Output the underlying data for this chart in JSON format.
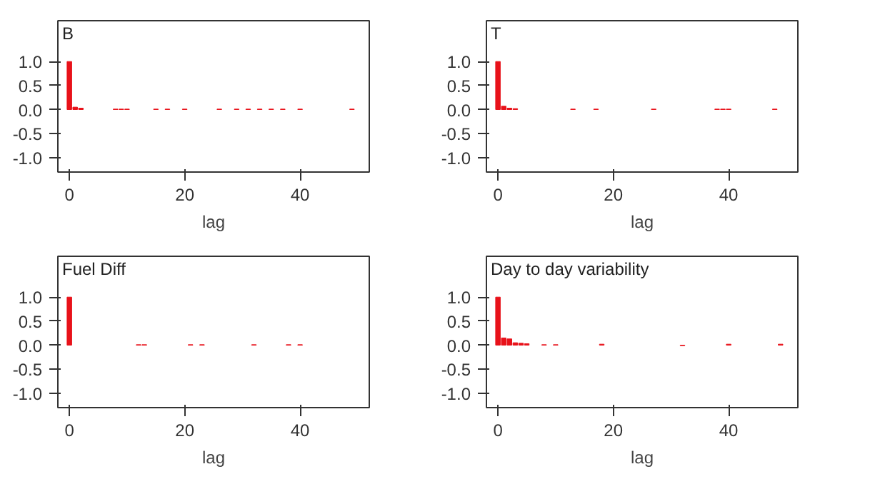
{
  "chart_data": [
    {
      "type": "bar",
      "title": "B",
      "xlabel": "lag",
      "x": [
        0,
        1,
        2,
        8,
        9,
        10,
        15,
        17,
        20,
        26,
        29,
        31,
        33,
        35,
        37,
        40,
        49
      ],
      "values": [
        1.0,
        0.05,
        0.03,
        0.01,
        0.01,
        0.01,
        0.01,
        0.01,
        0.01,
        0.01,
        0.01,
        0.01,
        0.01,
        0.01,
        0.01,
        0.01,
        0.01
      ],
      "color": "#e8121a",
      "xlim": [
        -2,
        52
      ],
      "xticks": [
        0,
        20,
        40
      ],
      "ylim": [
        -1.3,
        1.85
      ],
      "yticks": [
        {
          "value": -1,
          "label": "-1.0"
        },
        {
          "value": -0.5,
          "label": "-0.5"
        },
        {
          "value": 0,
          "label": "0.0"
        },
        {
          "value": 0.5,
          "label": "0.5"
        },
        {
          "value": 1,
          "label": "1.0"
        }
      ],
      "grid": false
    },
    {
      "type": "bar",
      "title": "T",
      "xlabel": "lag",
      "x": [
        0,
        1,
        2,
        3,
        13,
        17,
        27,
        38,
        39,
        40,
        48
      ],
      "values": [
        1.0,
        0.07,
        0.03,
        0.02,
        0.01,
        0.01,
        0.01,
        0.01,
        0.01,
        0.01,
        0.01
      ],
      "color": "#e8121a",
      "xlim": [
        -2,
        52
      ],
      "xticks": [
        0,
        20,
        40
      ],
      "ylim": [
        -1.3,
        1.85
      ],
      "yticks": [
        {
          "value": -1,
          "label": "-1.0"
        },
        {
          "value": -0.5,
          "label": "-0.5"
        },
        {
          "value": 0,
          "label": "0.0"
        },
        {
          "value": 0.5,
          "label": "0.5"
        },
        {
          "value": 1,
          "label": "1.0"
        }
      ],
      "grid": false
    },
    {
      "type": "bar",
      "title": "Fuel Diff",
      "xlabel": "lag",
      "x": [
        0,
        12,
        13,
        21,
        23,
        32,
        38,
        40
      ],
      "values": [
        1.0,
        0.01,
        0.01,
        0.01,
        0.01,
        0.01,
        0.01,
        0.01
      ],
      "color": "#e8121a",
      "xlim": [
        -2,
        52
      ],
      "xticks": [
        0,
        20,
        40
      ],
      "ylim": [
        -1.3,
        1.85
      ],
      "yticks": [
        {
          "value": -1,
          "label": "-1.0"
        },
        {
          "value": -0.5,
          "label": "-0.5"
        },
        {
          "value": 0,
          "label": "0.0"
        },
        {
          "value": 0.5,
          "label": "0.5"
        },
        {
          "value": 1,
          "label": "1.0"
        }
      ],
      "grid": false
    },
    {
      "type": "bar",
      "title": "Day to day variability",
      "xlabel": "lag",
      "x": [
        0,
        1,
        2,
        3,
        4,
        5,
        8,
        10,
        18,
        32,
        40,
        49
      ],
      "values": [
        1.0,
        0.15,
        0.13,
        0.05,
        0.04,
        0.03,
        0.01,
        0.01,
        0.02,
        -0.01,
        0.02,
        0.02
      ],
      "color": "#e8121a",
      "xlim": [
        -2,
        52
      ],
      "xticks": [
        0,
        20,
        40
      ],
      "ylim": [
        -1.3,
        1.85
      ],
      "yticks": [
        {
          "value": -1,
          "label": "-1.0"
        },
        {
          "value": -0.5,
          "label": "-0.5"
        },
        {
          "value": 0,
          "label": "0.0"
        },
        {
          "value": 0.5,
          "label": "0.5"
        },
        {
          "value": 1,
          "label": "1.0"
        }
      ],
      "grid": false
    }
  ]
}
